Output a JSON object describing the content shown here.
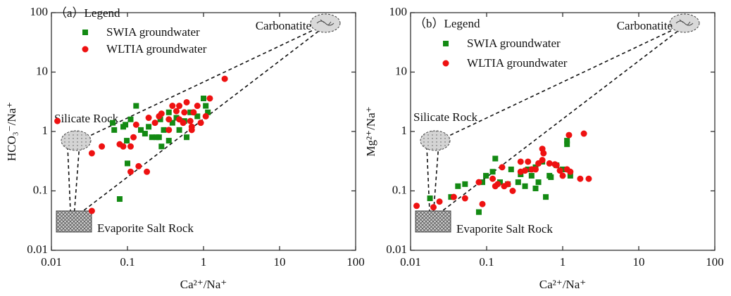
{
  "chart_data": [
    {
      "type": "scatter",
      "legend_title": "（a）Legend",
      "xlabel": "Ca²⁺/Na⁺",
      "ylabel": "HCO₃⁻/Na⁺",
      "annotations": [
        "Carbonatite",
        "Silicate Rock",
        "Evaporite Salt Rock"
      ],
      "log_x": true,
      "log_y": true,
      "xlim": [
        0.01,
        100
      ],
      "ylim": [
        0.01,
        100
      ],
      "xticks": [
        0.01,
        0.1,
        1,
        10,
        100
      ],
      "yticks": [
        0.01,
        0.1,
        1,
        10,
        100
      ],
      "series": [
        {
          "name": "SWIA groundwater",
          "color": "#138a13",
          "marker": "square",
          "x": [
            0.064,
            0.067,
            0.094,
            0.13,
            0.088,
            0.098,
            0.15,
            0.17,
            0.19,
            0.21,
            0.1,
            0.079,
            0.27,
            0.26,
            0.28,
            0.35,
            0.39,
            0.44,
            0.48,
            0.56,
            0.67,
            0.83,
            1.0,
            1.07,
            1.14,
            0.6,
            0.24,
            0.35,
            0.11,
            0.3
          ],
          "values": [
            1.4,
            1.06,
            1.3,
            2.7,
            1.2,
            0.7,
            1.06,
            0.92,
            1.2,
            0.8,
            0.29,
            0.073,
            1.6,
            0.8,
            0.56,
            0.7,
            1.4,
            1.7,
            1.06,
            1.5,
            2.1,
            1.8,
            3.6,
            2.7,
            2.1,
            0.8,
            0.8,
            2.1,
            1.6,
            1.06
          ]
        },
        {
          "name": "WLTIA groundwater",
          "color": "#ee1111",
          "marker": "circle",
          "x": [
            0.012,
            0.034,
            0.046,
            0.079,
            0.088,
            0.11,
            0.11,
            0.14,
            0.18,
            0.12,
            0.13,
            0.19,
            0.23,
            0.26,
            0.28,
            0.35,
            0.39,
            0.44,
            0.48,
            0.54,
            0.56,
            0.6,
            0.67,
            0.7,
            0.74,
            0.83,
            0.7,
            0.92,
            1.07,
            1.21,
            1.9,
            0.034,
            0.35,
            0.48
          ],
          "values": [
            1.5,
            0.43,
            0.56,
            0.61,
            0.56,
            0.56,
            0.21,
            0.26,
            0.21,
            0.8,
            1.3,
            1.7,
            1.4,
            1.8,
            2.0,
            1.06,
            2.7,
            2.2,
            1.6,
            1.4,
            2.1,
            3.1,
            1.5,
            1.2,
            2.1,
            2.7,
            1.06,
            1.4,
            1.8,
            3.6,
            7.7,
            0.046,
            1.6,
            2.7
          ]
        }
      ]
    },
    {
      "type": "scatter",
      "legend_title": "（b）Legend",
      "xlabel": "Ca²⁺/Na⁺",
      "ylabel": "Mg²⁺/Na⁺",
      "annotations": [
        "Carbonatite",
        "Silicate Rock",
        "Evaporite Salt Rock"
      ],
      "log_x": true,
      "log_y": true,
      "xlim": [
        0.01,
        100
      ],
      "ylim": [
        0.01,
        100
      ],
      "xticks": [
        0.01,
        0.1,
        1,
        10,
        100
      ],
      "yticks": [
        0.01,
        0.1,
        1,
        10,
        100
      ],
      "series": [
        {
          "name": "SWIA groundwater",
          "color": "#138a13",
          "marker": "square",
          "x": [
            0.018,
            0.034,
            0.042,
            0.052,
            0.079,
            0.088,
            0.098,
            0.12,
            0.13,
            0.15,
            0.19,
            0.21,
            0.26,
            0.32,
            0.35,
            0.39,
            0.44,
            0.48,
            0.54,
            0.67,
            0.83,
            1.0,
            1.26,
            0.6,
            0.7,
            1.14,
            1.14,
            0.44,
            0.28
          ],
          "values": [
            0.075,
            0.079,
            0.12,
            0.13,
            0.044,
            0.14,
            0.18,
            0.21,
            0.35,
            0.14,
            0.13,
            0.23,
            0.14,
            0.12,
            0.23,
            0.18,
            0.25,
            0.14,
            0.31,
            0.18,
            0.27,
            0.23,
            0.18,
            0.079,
            0.17,
            0.7,
            0.61,
            0.11,
            0.19
          ]
        },
        {
          "name": "WLTIA groundwater",
          "color": "#ee1111",
          "marker": "circle",
          "x": [
            0.012,
            0.02,
            0.024,
            0.037,
            0.052,
            0.079,
            0.088,
            0.12,
            0.13,
            0.14,
            0.16,
            0.17,
            0.19,
            0.22,
            0.28,
            0.32,
            0.35,
            0.39,
            0.44,
            0.48,
            0.54,
            0.54,
            0.56,
            0.67,
            0.83,
            0.92,
            1.0,
            1.21,
            1.14,
            1.26,
            1.7,
            2.2,
            1.9,
            0.28,
            0.79
          ],
          "values": [
            0.056,
            0.053,
            0.066,
            0.079,
            0.075,
            0.14,
            0.06,
            0.16,
            0.12,
            0.13,
            0.25,
            0.12,
            0.13,
            0.1,
            0.21,
            0.22,
            0.31,
            0.23,
            0.23,
            0.29,
            0.33,
            0.51,
            0.43,
            0.29,
            0.27,
            0.22,
            0.18,
            0.87,
            0.23,
            0.21,
            0.16,
            0.16,
            0.92,
            0.31,
            0.28
          ]
        }
      ]
    }
  ]
}
